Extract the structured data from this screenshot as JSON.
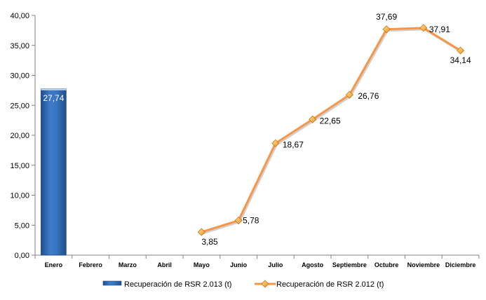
{
  "chart_data": {
    "type": "bar+line",
    "categories": [
      "Enero",
      "Febrero",
      "Marzo",
      "Abril",
      "Mayo",
      "Junio",
      "Julio",
      "Agosto",
      "Septiembre",
      "Octubre",
      "Noviembre",
      "Diciembre"
    ],
    "series": [
      {
        "name": "Recuperación de RSR 2.013 (t)",
        "type": "bar",
        "color": "#2E67B1",
        "values": [
          27.74,
          null,
          null,
          null,
          null,
          null,
          null,
          null,
          null,
          null,
          null,
          null
        ],
        "labels": [
          "27,74",
          null,
          null,
          null,
          null,
          null,
          null,
          null,
          null,
          null,
          null,
          null
        ]
      },
      {
        "name": "Recuperación de RSR 2.012 (t)",
        "type": "line",
        "color": "#F79646",
        "marker_color": "#F5B84A",
        "values": [
          null,
          null,
          null,
          null,
          3.85,
          5.78,
          18.67,
          22.65,
          26.76,
          37.69,
          37.91,
          34.14
        ],
        "labels": [
          null,
          null,
          null,
          null,
          "3,85",
          "5,78",
          "18,67",
          "22,65",
          "26,76",
          "37,69",
          "37,91",
          "34,14"
        ]
      }
    ],
    "yticks": [
      "0,00",
      "5,00",
      "10,00",
      "15,00",
      "20,00",
      "25,00",
      "30,00",
      "35,00",
      "40,00"
    ],
    "ylim": [
      0,
      40
    ],
    "grid": false,
    "legend_position": "bottom"
  }
}
